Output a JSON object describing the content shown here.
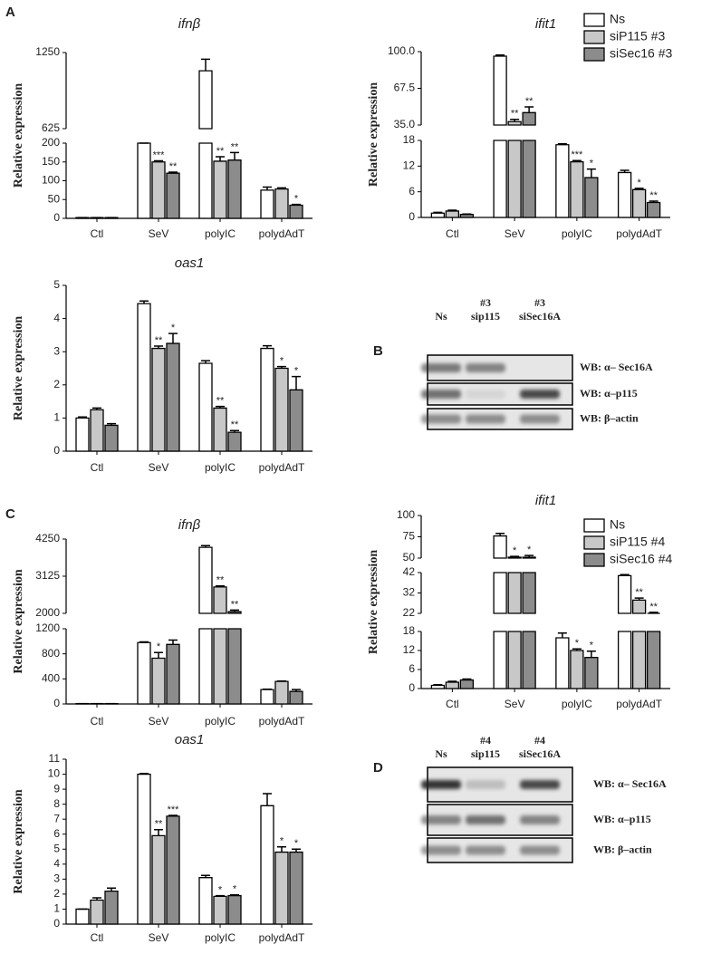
{
  "panel_labels": [
    "A",
    "C"
  ],
  "chart_data": [
    {
      "type": "bar",
      "title": "ifnβ",
      "y_label": "Relative expression",
      "categories": [
        "Ctl",
        "SeV",
        "polyIC",
        "polydAdT"
      ],
      "y_segments": [
        {
          "ylim": [
            0,
            200
          ],
          "yticks": [
            0,
            50,
            100,
            150,
            200
          ]
        },
        {
          "ylim": [
            625,
            1250
          ],
          "yticks": [
            625,
            1250
          ]
        }
      ],
      "legend": false,
      "series": [
        {
          "color": "#ffffff",
          "values": [
            2,
            200,
            1100,
            75
          ],
          "errors": [
            0,
            0,
            95,
            8
          ],
          "stars": [
            null,
            null,
            null,
            null
          ]
        },
        {
          "color": "#c8c8c8",
          "values": [
            2,
            150,
            152,
            78
          ],
          "errors": [
            0,
            3,
            12,
            3
          ],
          "stars": [
            null,
            "***",
            "**",
            null
          ]
        },
        {
          "color": "#8c8c8c",
          "values": [
            2,
            120,
            155,
            35
          ],
          "errors": [
            0,
            3,
            20,
            2
          ],
          "stars": [
            null,
            "**",
            "**",
            "*"
          ]
        }
      ]
    },
    {
      "type": "bar",
      "title": "ifit1",
      "y_label": "Relative expression",
      "categories": [
        "Ctl",
        "SeV",
        "polyIC",
        "polydAdT"
      ],
      "y_segments": [
        {
          "ylim": [
            0,
            18
          ],
          "yticks": [
            0,
            6,
            12,
            18
          ]
        },
        {
          "ylim": [
            35,
            100
          ],
          "yticks": [
            {
              "value": 35,
              "label": "35.0"
            },
            67.5,
            {
              "value": 100,
              "label": "100.0"
            }
          ]
        }
      ],
      "legend": true,
      "series": [
        {
          "name": "Ns",
          "color": "#ffffff",
          "values": [
            1,
            96,
            17,
            10.5
          ],
          "errors": [
            0.2,
            1,
            0.2,
            0.5
          ],
          "stars": [
            null,
            null,
            null,
            null
          ]
        },
        {
          "name": "siP115 #3",
          "color": "#c8c8c8",
          "values": [
            1.5,
            38,
            13,
            6.5
          ],
          "errors": [
            0.2,
            2,
            0.3,
            0.3
          ],
          "stars": [
            null,
            "**",
            "***",
            "*"
          ]
        },
        {
          "name": "siSec16 #3",
          "color": "#8c8c8c",
          "values": [
            0.7,
            46,
            9.3,
            3.5
          ],
          "errors": [
            0.1,
            5,
            2,
            0.3
          ],
          "stars": [
            null,
            "**",
            "*",
            "**"
          ]
        }
      ]
    },
    {
      "type": "bar",
      "title": "oas1",
      "y_label": "Relative expression",
      "categories": [
        "Ctl",
        "SeV",
        "polyIC",
        "polydAdT"
      ],
      "y_segments": [
        {
          "ylim": [
            0,
            5
          ],
          "yticks": [
            0,
            1,
            2,
            3,
            4,
            5
          ]
        }
      ],
      "legend": false,
      "series": [
        {
          "color": "#ffffff",
          "values": [
            1.0,
            4.45,
            2.65,
            3.1
          ],
          "errors": [
            0.03,
            0.08,
            0.08,
            0.08
          ],
          "stars": [
            null,
            null,
            null,
            null
          ]
        },
        {
          "color": "#c8c8c8",
          "values": [
            1.25,
            3.1,
            1.3,
            2.5
          ],
          "errors": [
            0.05,
            0.07,
            0.05,
            0.05
          ],
          "stars": [
            null,
            "**",
            "**",
            "*"
          ]
        },
        {
          "color": "#8c8c8c",
          "values": [
            0.78,
            3.25,
            0.57,
            1.85
          ],
          "errors": [
            0.05,
            0.3,
            0.05,
            0.4
          ],
          "stars": [
            null,
            "*",
            "**",
            "*"
          ]
        }
      ]
    },
    {
      "type": "bar",
      "title": "ifnβ",
      "y_label": "Relative expression",
      "categories": [
        "Ctl",
        "SeV",
        "polyIC",
        "polydAdT"
      ],
      "y_segments": [
        {
          "ylim": [
            0,
            1200
          ],
          "yticks": [
            0,
            400,
            800,
            1200
          ]
        },
        {
          "ylim": [
            2000,
            4250
          ],
          "yticks": [
            2000,
            3125,
            4250
          ]
        }
      ],
      "legend": false,
      "series": [
        {
          "color": "#ffffff",
          "values": [
            5,
            980,
            4000,
            230
          ],
          "errors": [
            0,
            10,
            50,
            5
          ],
          "stars": [
            null,
            null,
            null,
            null
          ]
        },
        {
          "color": "#c8c8c8",
          "values": [
            5,
            730,
            2800,
            360
          ],
          "errors": [
            0,
            90,
            30,
            5
          ],
          "stars": [
            null,
            "*",
            "**",
            null
          ]
        },
        {
          "color": "#8c8c8c",
          "values": [
            5,
            950,
            2050,
            200
          ],
          "errors": [
            0,
            70,
            50,
            30
          ],
          "stars": [
            null,
            null,
            "**",
            null
          ]
        }
      ]
    },
    {
      "type": "bar",
      "title": "ifit1",
      "y_label": "Relative expression",
      "categories": [
        "Ctl",
        "SeV",
        "polyIC",
        "polydAdT"
      ],
      "y_segments": [
        {
          "ylim": [
            0,
            18
          ],
          "yticks": [
            0,
            6,
            12,
            18
          ]
        },
        {
          "ylim": [
            22,
            42
          ],
          "yticks": [
            22,
            32,
            42
          ]
        },
        {
          "ylim": [
            50,
            100
          ],
          "yticks": [
            50,
            75,
            100
          ]
        }
      ],
      "legend": true,
      "series": [
        {
          "name": "Ns",
          "color": "#ffffff",
          "values": [
            1,
            76,
            16,
            40.5
          ],
          "errors": [
            0.2,
            3,
            1.5,
            0.5
          ],
          "stars": [
            null,
            null,
            null,
            null
          ]
        },
        {
          "name": "siP115 #4",
          "color": "#c8c8c8",
          "values": [
            2,
            51,
            12,
            28.5
          ],
          "errors": [
            0.3,
            1,
            0.5,
            1
          ],
          "stars": [
            null,
            "*",
            "*",
            "**"
          ]
        },
        {
          "name": "siSec16 #4",
          "color": "#8c8c8c",
          "values": [
            2.7,
            51,
            9.8,
            22
          ],
          "errors": [
            0.3,
            2,
            2,
            0.5
          ],
          "stars": [
            null,
            "*",
            "*",
            "**"
          ]
        }
      ]
    },
    {
      "type": "bar",
      "title": "oas1",
      "y_label": "Relative expression",
      "categories": [
        "Ctl",
        "SeV",
        "polyIC",
        "polydAdT"
      ],
      "y_segments": [
        {
          "ylim": [
            0,
            11
          ],
          "yticks": [
            0,
            1,
            2,
            3,
            4,
            5,
            6,
            7,
            8,
            9,
            10,
            11
          ]
        }
      ],
      "legend": false,
      "series": [
        {
          "color": "#ffffff",
          "values": [
            1,
            10,
            3.1,
            7.9
          ],
          "errors": [
            0,
            0.05,
            0.15,
            0.8
          ],
          "stars": [
            null,
            null,
            null,
            null
          ]
        },
        {
          "color": "#c8c8c8",
          "values": [
            1.6,
            5.9,
            1.85,
            4.8
          ],
          "errors": [
            0.15,
            0.4,
            0.05,
            0.35
          ],
          "stars": [
            null,
            "**",
            "*",
            "*"
          ]
        },
        {
          "color": "#8c8c8c",
          "values": [
            2.2,
            7.2,
            1.9,
            4.8
          ],
          "errors": [
            0.2,
            0.05,
            0.05,
            0.2
          ],
          "stars": [
            null,
            "***",
            "*",
            "*"
          ]
        }
      ]
    }
  ],
  "blots": [
    {
      "label": "B",
      "columns": [
        [
          "Ns"
        ],
        [
          "#3",
          "sip115"
        ],
        [
          "#3",
          "siSec16A"
        ]
      ],
      "rows": [
        "WB: α– Sec16A",
        "WB: α–p115",
        "WB: β–actin"
      ]
    },
    {
      "label": "D",
      "columns": [
        [
          "Ns"
        ],
        [
          "#4",
          "sip115"
        ],
        [
          "#4",
          "siSec16A"
        ]
      ],
      "rows": [
        "WB: α– Sec16A",
        "WB: α–p115",
        "WB: β–actin"
      ]
    }
  ]
}
